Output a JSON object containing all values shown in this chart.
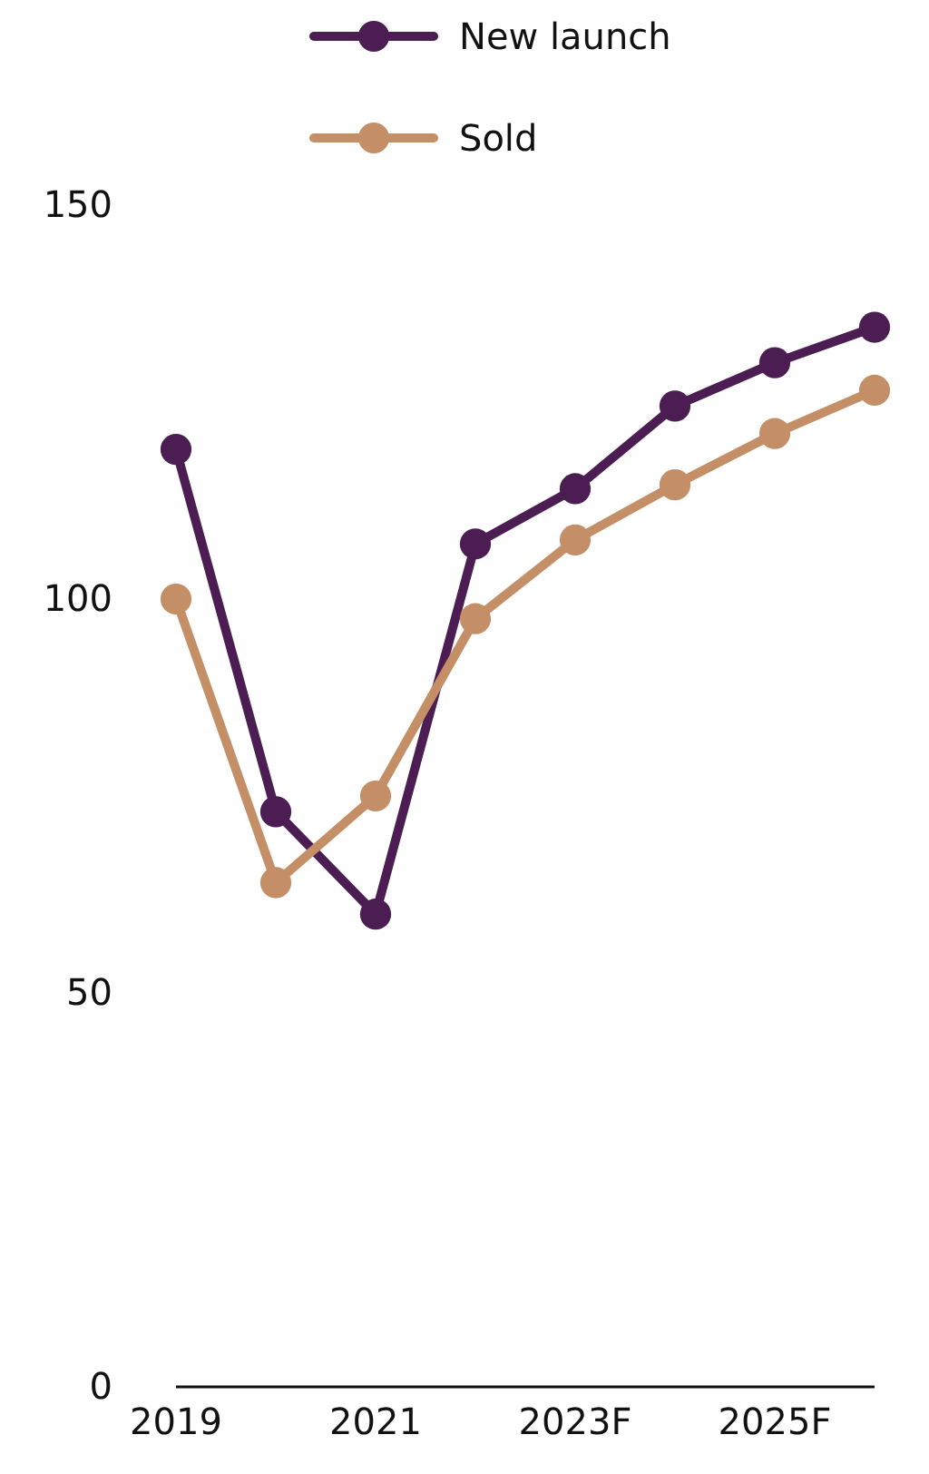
{
  "chart_data": {
    "type": "line",
    "categories": [
      "2019",
      null,
      "2021",
      null,
      "2023F",
      null,
      "2025F",
      null
    ],
    "series": [
      {
        "name": "New launch",
        "color": "#4b1d52",
        "values": [
          119,
          73,
          60,
          107,
          114,
          124.5,
          130,
          134.5
        ]
      },
      {
        "name": "Sold",
        "color": "#c48f67",
        "values": [
          100,
          64,
          75,
          97.5,
          107.5,
          114.5,
          121,
          126.5
        ]
      }
    ],
    "ylim": [
      0,
      150
    ],
    "yticks": [
      0,
      50,
      100,
      150
    ],
    "grid": false,
    "legend": "top",
    "marker": "circle",
    "line_style": "solid"
  }
}
